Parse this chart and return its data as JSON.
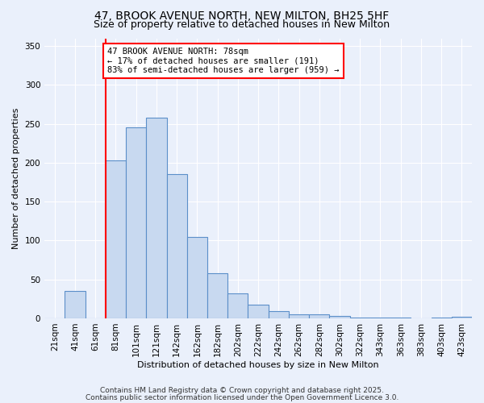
{
  "title_line1": "47, BROOK AVENUE NORTH, NEW MILTON, BH25 5HF",
  "title_line2": "Size of property relative to detached houses in New Milton",
  "xlabel": "Distribution of detached houses by size in New Milton",
  "ylabel": "Number of detached properties",
  "categories": [
    "21sqm",
    "41sqm",
    "61sqm",
    "81sqm",
    "101sqm",
    "121sqm",
    "142sqm",
    "162sqm",
    "182sqm",
    "202sqm",
    "222sqm",
    "242sqm",
    "262sqm",
    "282sqm",
    "302sqm",
    "322sqm",
    "343sqm",
    "363sqm",
    "383sqm",
    "403sqm",
    "423sqm"
  ],
  "values": [
    0,
    35,
    0,
    203,
    245,
    258,
    185,
    105,
    58,
    32,
    18,
    9,
    5,
    5,
    3,
    1,
    1,
    1,
    0,
    1,
    2
  ],
  "bar_color": "#c8d9f0",
  "bar_edge_color": "#5b8fc9",
  "vline_x_index": 3,
  "vline_color": "red",
  "annotation_text": "47 BROOK AVENUE NORTH: 78sqm\n← 17% of detached houses are smaller (191)\n83% of semi-detached houses are larger (959) →",
  "annotation_box_color": "white",
  "annotation_box_edge_color": "red",
  "ylim": [
    0,
    360
  ],
  "yticks": [
    0,
    50,
    100,
    150,
    200,
    250,
    300,
    350
  ],
  "footnote1": "Contains HM Land Registry data © Crown copyright and database right 2025.",
  "footnote2": "Contains public sector information licensed under the Open Government Licence 3.0.",
  "background_color": "#eaf0fb",
  "grid_color": "white",
  "title_fontsize": 10,
  "subtitle_fontsize": 9,
  "axis_label_fontsize": 8,
  "tick_fontsize": 7.5,
  "annotation_fontsize": 7.5,
  "footnote_fontsize": 6.5
}
